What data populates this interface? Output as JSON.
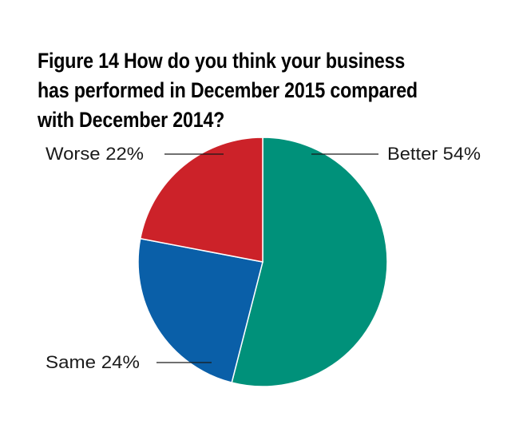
{
  "title_lines": [
    "Figure 14 How do you think your business",
    "has performed in December 2015 compared",
    "with December 2014?"
  ],
  "chart_data": {
    "type": "pie",
    "title": "Figure 14 How do you think your business has performed in December 2015 compared with December 2014?",
    "slices": [
      {
        "label": "Better",
        "value": 54,
        "display": "Better 54%",
        "color": "#00917a"
      },
      {
        "label": "Same",
        "value": 24,
        "display": "Same 24%",
        "color": "#0a5fa8"
      },
      {
        "label": "Worse",
        "value": 22,
        "display": "Worse 22%",
        "color": "#cc2229"
      }
    ],
    "start_angle": "top, clockwise",
    "legend": "none (direct labels with leader lines)"
  }
}
